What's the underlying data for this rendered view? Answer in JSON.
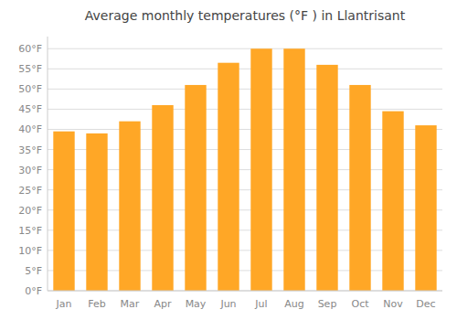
{
  "chart_data": {
    "type": "bar",
    "title": "Average monthly temperatures (°F ) in Llantrisant",
    "categories": [
      "Jan",
      "Feb",
      "Mar",
      "Apr",
      "May",
      "Jun",
      "Jul",
      "Aug",
      "Sep",
      "Oct",
      "Nov",
      "Dec"
    ],
    "values": [
      39.5,
      39,
      42,
      46,
      51,
      56.5,
      60,
      60,
      56,
      51,
      44.5,
      41
    ],
    "color": "#FFA726",
    "ylim": [
      0,
      63
    ],
    "yticks": [
      {
        "value": 0,
        "label": "0°F"
      },
      {
        "value": 5,
        "label": "5°F"
      },
      {
        "value": 10,
        "label": "10°F"
      },
      {
        "value": 15,
        "label": "15°F"
      },
      {
        "value": 20,
        "label": "20°F"
      },
      {
        "value": 25,
        "label": "25°F"
      },
      {
        "value": 30,
        "label": "30°F"
      },
      {
        "value": 35,
        "label": "35°F"
      },
      {
        "value": 40,
        "label": "40°F"
      },
      {
        "value": 45,
        "label": "45°F"
      },
      {
        "value": 50,
        "label": "50°F"
      },
      {
        "value": 55,
        "label": "55°F"
      },
      {
        "value": 60,
        "label": "60°F"
      }
    ],
    "grid": true
  }
}
